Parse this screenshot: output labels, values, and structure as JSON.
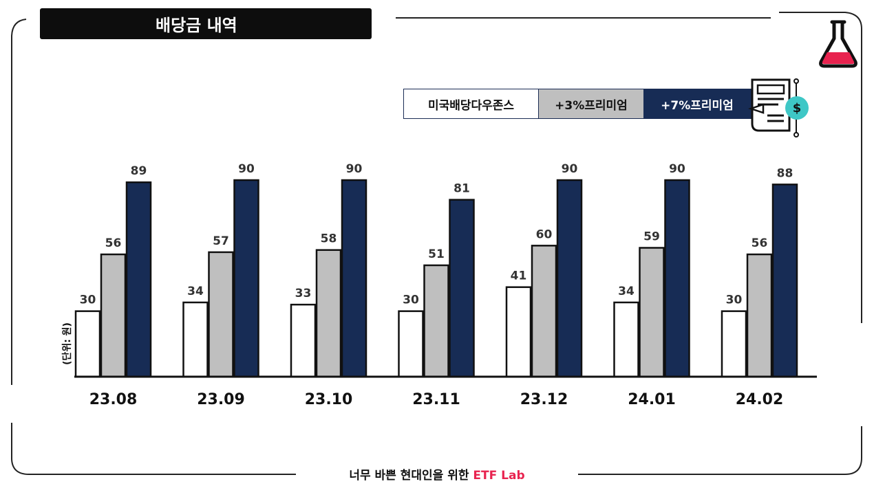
{
  "header": {
    "title": "배당금 내역"
  },
  "legend": {
    "items": [
      "미국배당다우존스",
      "+3%프리미엄",
      "+7%프리미엄"
    ]
  },
  "unit_label": "(단위: 원)",
  "footer": {
    "prefix": "너무 바쁜 현대인을 위한 ",
    "brand": "ETF Lab"
  },
  "colors": {
    "series0_fill": "#ffffff",
    "series1_fill": "#bfbfbf",
    "series2_fill": "#172c55",
    "brand_pink": "#e8234f",
    "flask_liquid": "#e8234f",
    "dollar_badge": "#3ec7c6"
  },
  "icons": [
    "flask-icon",
    "dividend-document-icon",
    "dollar-badge-icon"
  ],
  "chart_data": {
    "type": "bar",
    "categories": [
      "23.08",
      "23.09",
      "23.10",
      "23.11",
      "23.12",
      "24.01",
      "24.02"
    ],
    "series": [
      {
        "name": "미국배당다우존스",
        "values": [
          30,
          34,
          33,
          30,
          41,
          34,
          30
        ]
      },
      {
        "name": "+3%프리미엄",
        "values": [
          56,
          57,
          58,
          51,
          60,
          59,
          56
        ]
      },
      {
        "name": "+7%프리미엄",
        "values": [
          89,
          90,
          90,
          81,
          90,
          90,
          88
        ]
      }
    ],
    "ylabel": "(단위: 원)",
    "ylim": [
      0,
      90
    ],
    "grid": false,
    "legend": "top-right"
  }
}
